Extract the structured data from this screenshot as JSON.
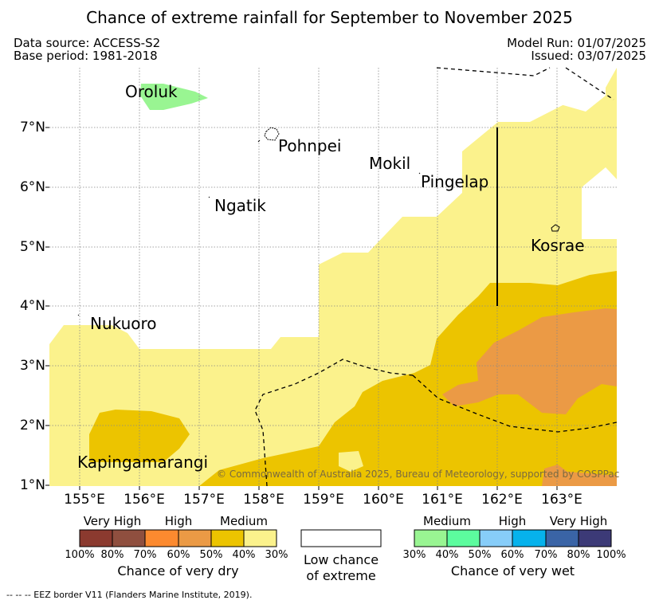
{
  "title": "Chance of extreme rainfall for September to November 2025",
  "data_source": "Data source: ACCESS-S2",
  "base_period": "Base period: 1981-2018",
  "model_run": "Model Run: 01/07/2025",
  "issued": "Issued: 03/07/2025",
  "x_ticks": [
    "155°E",
    "156°E",
    "157°E",
    "158°E",
    "159°E",
    "160°E",
    "161°E",
    "162°E",
    "163°E"
  ],
  "y_ticks": [
    "1°N",
    "2°N",
    "3°N",
    "4°N",
    "5°N",
    "6°N",
    "7°N"
  ],
  "places": {
    "oroluk": "Oroluk",
    "pohnpei": "Pohnpei",
    "mokil": "Mokil",
    "pingelap": "Pingelap",
    "ngatik": "Ngatik",
    "kosrae": "Kosrae",
    "nukuoro": "Nukuoro",
    "kapingamarangi": "Kapingamarangi"
  },
  "copyright": "© Commonwealth of Australia 2025, Bureau of Meteorology, supported by COSPPac",
  "legend_dry": {
    "very_high": "Very High",
    "high": "High",
    "medium": "Medium",
    "percents": [
      "100%",
      "80%",
      "70%",
      "60%",
      "50%",
      "40%",
      "30%"
    ],
    "title": "Chance of very dry",
    "colors": [
      "#8b3a2f",
      "#8f4f3f",
      "#fc8a2f",
      "#eb9a45",
      "#ecc400",
      "#fbf28c"
    ]
  },
  "legend_low": {
    "line1": "Low chance",
    "line2": "of extreme"
  },
  "legend_wet": {
    "medium": "Medium",
    "high": "High",
    "very_high": "Very High",
    "percents": [
      "30%",
      "40%",
      "50%",
      "60%",
      "70%",
      "80%",
      "100%"
    ],
    "title": "Chance of very wet",
    "colors": [
      "#99f592",
      "#5cfc9e",
      "#87cdf9",
      "#06b2ec",
      "#3a64a6",
      "#3c3a77"
    ]
  },
  "footnote": "-- -- -- EEZ border V11 (Flanders Marine Institute, 2019)."
}
